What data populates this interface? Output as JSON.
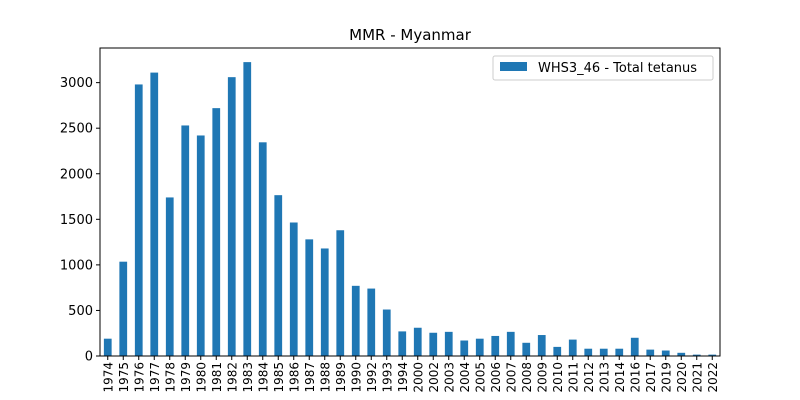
{
  "chart_data": {
    "type": "bar",
    "title": "MMR - Myanmar",
    "xlabel": "",
    "ylabel": "",
    "legend": {
      "placement": "top-right"
    },
    "grid": false,
    "ylim": [
      0,
      3380
    ],
    "yticks": [
      0,
      500,
      1000,
      1500,
      2000,
      2500,
      3000
    ],
    "categories": [
      "1974",
      "1975",
      "1976",
      "1977",
      "1978",
      "1979",
      "1980",
      "1981",
      "1982",
      "1983",
      "1984",
      "1985",
      "1986",
      "1987",
      "1988",
      "1989",
      "1990",
      "1992",
      "1993",
      "1994",
      "2000",
      "2002",
      "2003",
      "2004",
      "2005",
      "2006",
      "2007",
      "2008",
      "2009",
      "2010",
      "2011",
      "2012",
      "2013",
      "2014",
      "2016",
      "2017",
      "2019",
      "2020",
      "2021",
      "2022"
    ],
    "series": [
      {
        "name": "WHS3_46 - Total tetanus",
        "color": "#1f77b4",
        "values": [
          190,
          1035,
          2980,
          3110,
          1740,
          2530,
          2420,
          2720,
          3060,
          3225,
          2345,
          1765,
          1465,
          1280,
          1180,
          1380,
          770,
          740,
          510,
          270,
          310,
          255,
          265,
          170,
          190,
          220,
          265,
          145,
          230,
          100,
          180,
          80,
          80,
          80,
          200,
          70,
          60,
          35,
          15,
          15
        ]
      }
    ]
  }
}
